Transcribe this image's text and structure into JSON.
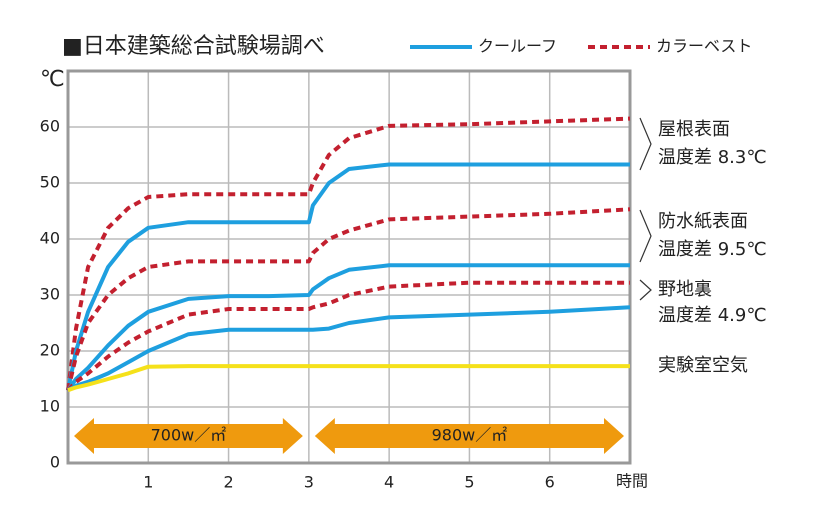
{
  "chart_data": {
    "type": "line",
    "title": "■日本建築総合試験場調べ",
    "y_label": "℃",
    "x_label": "時間",
    "xlim": [
      0,
      7
    ],
    "xticks": [
      1,
      2,
      3,
      4,
      5,
      6
    ],
    "ylim": [
      0,
      70
    ],
    "yticks": [
      0,
      10,
      20,
      30,
      40,
      50,
      60
    ],
    "grid": true,
    "legend": [
      {
        "name": "クールーフ",
        "color": "#1e9fdf",
        "dash": false
      },
      {
        "name": "カラーベスト",
        "color": "#c3202f",
        "dash": true
      }
    ],
    "x": [
      0,
      0.1,
      0.25,
      0.5,
      0.75,
      1,
      1.5,
      2,
      2.5,
      3,
      3.05,
      3.25,
      3.5,
      4,
      5,
      6,
      7
    ],
    "series": [
      {
        "color": "#c3202f",
        "dash": true,
        "values": [
          13,
          24,
          35,
          42,
          45.5,
          47.5,
          48,
          48,
          48,
          48,
          50,
          55,
          58,
          60.2,
          60.5,
          61,
          61.5
        ]
      },
      {
        "color": "#1e9fdf",
        "dash": false,
        "values": [
          13,
          20,
          27,
          35,
          39.5,
          42,
          43,
          43,
          43,
          43,
          46,
          50,
          52.5,
          53.3,
          53.3,
          53.3,
          53.3
        ]
      },
      {
        "color": "#c3202f",
        "dash": true,
        "values": [
          13,
          19,
          25,
          30,
          33,
          35,
          36,
          36,
          36,
          36,
          37.5,
          40,
          41.5,
          43.5,
          44,
          44.5,
          45.3
        ]
      },
      {
        "color": "#1e9fdf",
        "dash": false,
        "values": [
          13,
          15,
          17,
          21,
          24.5,
          27,
          29.3,
          29.8,
          29.8,
          30,
          31,
          33,
          34.5,
          35.3,
          35.3,
          35.3,
          35.3
        ]
      },
      {
        "color": "#c3202f",
        "dash": true,
        "values": [
          13,
          14.5,
          16,
          19,
          21.5,
          23.5,
          26.5,
          27.5,
          27.5,
          27.5,
          27.8,
          28.5,
          30,
          31.5,
          32.2,
          32.2,
          32.2
        ]
      },
      {
        "color": "#1e9fdf",
        "dash": false,
        "values": [
          13,
          13.8,
          14.5,
          16,
          18,
          20,
          23,
          23.8,
          23.8,
          23.8,
          23.8,
          24,
          25,
          26,
          26.5,
          27,
          27.8
        ]
      },
      {
        "color": "#f5e11a",
        "dash": false,
        "values": [
          13,
          13.5,
          14,
          15,
          16,
          17.2,
          17.3,
          17.3,
          17.3,
          17.3,
          17.3,
          17.3,
          17.3,
          17.3,
          17.3,
          17.3,
          17.3
        ]
      }
    ],
    "periods": [
      {
        "label": "700w／㎡",
        "from": 0,
        "to": 3
      },
      {
        "label": "980w／㎡",
        "from": 3,
        "to": 7
      }
    ],
    "annotations": [
      {
        "label": "屋根表面",
        "text": "温度差 8.3℃"
      },
      {
        "label": "防水紙表面",
        "text": "温度差 9.5℃"
      },
      {
        "label": "野地裏",
        "text": "温度差 4.9℃"
      },
      {
        "label": "実験室空気"
      }
    ]
  }
}
